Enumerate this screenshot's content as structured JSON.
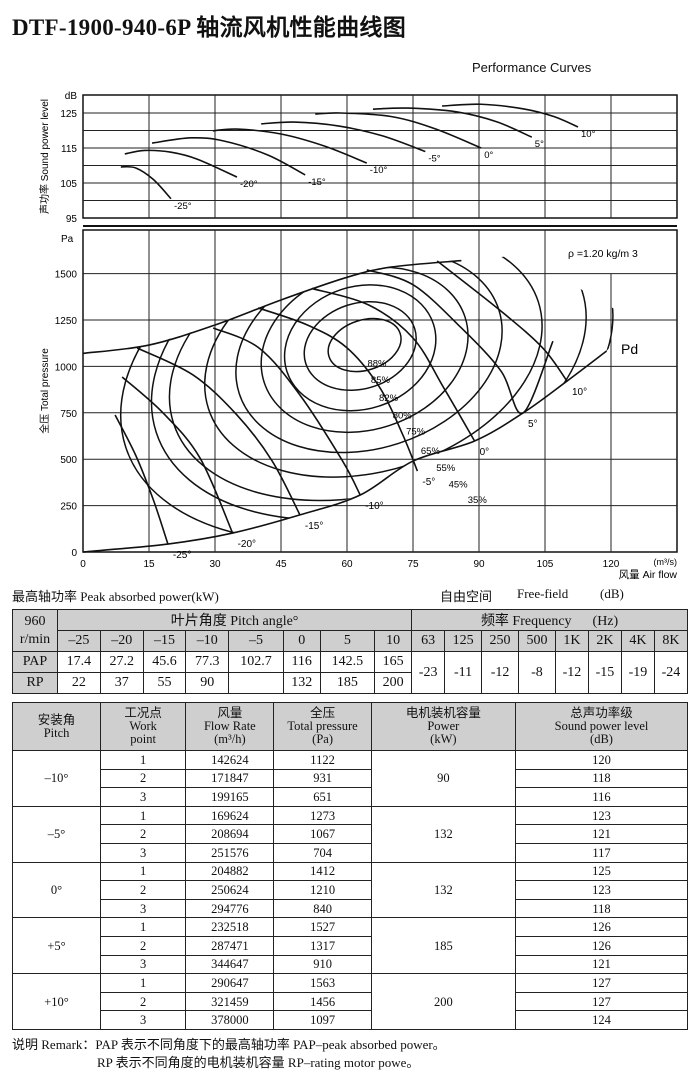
{
  "title": "DTF-1900-940-6P 轴流风机性能曲线图",
  "subtitle": "Performance Curves",
  "chart_data": [
    {
      "type": "line",
      "ylabel": "声功率 Sound power level",
      "yunit": "dB",
      "ylim": [
        95,
        130
      ],
      "xlim": [
        0,
        135
      ],
      "yticks": [
        95,
        105,
        115,
        125
      ],
      "grid": true,
      "series": [
        {
          "name": "-25°",
          "points": [
            [
              8.6,
              109.6
            ],
            [
              12,
              109.3
            ],
            [
              16,
              106
            ],
            [
              20,
              100.5
            ]
          ]
        },
        {
          "name": "-20°",
          "points": [
            [
              9.5,
              113.3
            ],
            [
              14,
              114.3
            ],
            [
              20,
              113.8
            ],
            [
              26,
              111.8
            ],
            [
              35,
              106.7
            ]
          ]
        },
        {
          "name": "-15°",
          "points": [
            [
              15.7,
              116.4
            ],
            [
              24.5,
              117.9
            ],
            [
              32,
              117
            ],
            [
              42,
              113
            ],
            [
              50.5,
              107.3
            ]
          ]
        },
        {
          "name": "-10°",
          "points": [
            [
              29.5,
              119.9
            ],
            [
              35,
              120.4
            ],
            [
              45,
              119
            ],
            [
              55,
              115.5
            ],
            [
              64.5,
              110.7
            ]
          ]
        },
        {
          "name": "-5°",
          "points": [
            [
              40.5,
              121.9
            ],
            [
              48,
              122.4
            ],
            [
              58,
              121.3
            ],
            [
              68,
              118.5
            ],
            [
              77.8,
              114
            ]
          ]
        },
        {
          "name": "0°",
          "points": [
            [
              52.8,
              124.7
            ],
            [
              58.5,
              125
            ],
            [
              70,
              124
            ],
            [
              80,
              120.5
            ],
            [
              90.5,
              115
            ]
          ]
        },
        {
          "name": "5°",
          "points": [
            [
              65.9,
              126.1
            ],
            [
              73.9,
              126.4
            ],
            [
              85,
              125.3
            ],
            [
              94,
              122.5
            ],
            [
              102,
              118.1
            ]
          ]
        },
        {
          "name": "10°",
          "points": [
            [
              81.6,
              127
            ],
            [
              90.5,
              127.5
            ],
            [
              100,
              126.2
            ],
            [
              107,
              124
            ],
            [
              112.5,
              121
            ]
          ]
        }
      ]
    },
    {
      "type": "line",
      "ylabel": "全压 Total pressure",
      "yunit": "Pa",
      "xlabel": "风量 Air flow",
      "xunit": "(m³/s)",
      "xlim": [
        0,
        135
      ],
      "ylim": [
        0,
        1665
      ],
      "xticks": [
        0,
        15,
        30,
        45,
        60,
        75,
        90,
        105,
        120
      ],
      "yticks": [
        0,
        250,
        500,
        750,
        1000,
        1250,
        1500
      ],
      "grid": true,
      "annotation": "ρ =1.20 kg/m 3",
      "pd_label": "Pd",
      "surge_line": [
        [
          0,
          1070
        ],
        [
          15,
          1115
        ],
        [
          30,
          1223
        ],
        [
          45,
          1358
        ],
        [
          60,
          1480
        ],
        [
          70,
          1535
        ],
        [
          86,
          1570
        ]
      ],
      "pd_line": [
        [
          0,
          0
        ],
        [
          19.3,
          43
        ],
        [
          34,
          102
        ],
        [
          49.3,
          200
        ],
        [
          63,
          307
        ],
        [
          75,
          490
        ],
        [
          89,
          598
        ],
        [
          100,
          749
        ],
        [
          110,
          921
        ],
        [
          119,
          1083
        ]
      ],
      "pitch_curves": [
        {
          "name": "-25°",
          "points": [
            [
              7.3,
              738
            ],
            [
              12,
              520
            ],
            [
              16,
              280
            ],
            [
              19.3,
              43
            ]
          ]
        },
        {
          "name": "-20°",
          "points": [
            [
              8.9,
              943
            ],
            [
              18.2,
              749
            ],
            [
              26.6,
              506
            ],
            [
              34,
              102
            ]
          ]
        },
        {
          "name": "-15°",
          "points": [
            [
              12.3,
              1099
            ],
            [
              25,
              954
            ],
            [
              35,
              738
            ],
            [
              43,
              490
            ],
            [
              49.3,
              200
            ]
          ]
        },
        {
          "name": "-10°",
          "points": [
            [
              29.6,
              1207
            ],
            [
              40,
              1099
            ],
            [
              49.3,
              846
            ],
            [
              59,
              490
            ],
            [
              63,
              307
            ]
          ]
        },
        {
          "name": "-5°",
          "points": [
            [
              39.8,
              1315
            ],
            [
              51,
              1223
            ],
            [
              60,
              1100
            ],
            [
              67.5,
              884
            ],
            [
              72.7,
              630
            ],
            [
              76,
              436
            ]
          ]
        },
        {
          "name": "0°",
          "points": [
            [
              52,
              1420
            ],
            [
              65,
              1330
            ],
            [
              75,
              1153
            ],
            [
              82,
              884
            ],
            [
              89,
              598
            ]
          ]
        },
        {
          "name": "5°",
          "points": [
            [
              64.5,
              1520
            ],
            [
              75,
              1440
            ],
            [
              86,
              1207
            ],
            [
              95,
              975
            ],
            [
              100,
              749
            ],
            [
              106.8,
              1136
            ]
          ]
        },
        {
          "name": "10°",
          "points": [
            [
              80.5,
              1568
            ],
            [
              95,
              1298
            ],
            [
              104.5,
              1099
            ],
            [
              110,
              921
            ]
          ]
        }
      ],
      "efficiency_contours": [
        {
          "label": "88%",
          "center": [
            64,
            1115
          ],
          "rx": 8.5,
          "ry": 135
        },
        {
          "label": "85%",
          "center": [
            63,
            1110
          ],
          "rx": 13,
          "ry": 230
        },
        {
          "label": "82%",
          "center": [
            63,
            1100
          ],
          "rx": 17.5,
          "ry": 330
        },
        {
          "label": "80%",
          "center": [
            64,
            1090
          ],
          "rx": 24,
          "ry": 430
        },
        {
          "label": "75%",
          "center": [
            65,
            1080
          ],
          "rx": 31,
          "ry": 520
        },
        {
          "label": "65%",
          "center": [
            66,
            1060
          ],
          "rx": 39.4,
          "ry": 620
        },
        {
          "label": "55%",
          "center": [
            67,
            1050
          ],
          "rx": 48.8,
          "ry": 720
        },
        {
          "label": "45%",
          "center": [
            68,
            1040
          ],
          "rx": 54,
          "ry": 810
        },
        {
          "label": "35%",
          "center": [
            70,
            1030
          ],
          "rx": 63.4,
          "ry": 900
        }
      ]
    }
  ],
  "captions": {
    "peak_power": "最高轴功率 Peak absorbed power(kW)",
    "free_field": "自由空间",
    "free_field_en": "Free-field",
    "db": "(dB)"
  },
  "table1": {
    "speed": "960",
    "speed_unit": "r/min",
    "pitch_header": "叶片角度 Pitch angle°",
    "freq_header": "频率 Frequency      (Hz)",
    "pitches": [
      "-25",
      "-20",
      "-15",
      "-10",
      "-5",
      "0",
      "5",
      "10"
    ],
    "freqs": [
      "63",
      "125",
      "250",
      "500",
      "1K",
      "2K",
      "4K",
      "8K"
    ],
    "pap_label": "PAP",
    "rp_label": "RP",
    "pap": [
      "17.4",
      "27.2",
      "45.6",
      "77.3",
      "102.7",
      "116",
      "142.5",
      "165"
    ],
    "rp": [
      "22",
      "37",
      "55",
      "90",
      "",
      "132",
      "185",
      "200"
    ],
    "freq_values": [
      "-23",
      "-11",
      "-12",
      "-8",
      "-12",
      "-15",
      "-19",
      "-24"
    ]
  },
  "table2": {
    "headers": [
      [
        "安装角",
        "Pitch"
      ],
      [
        "工况点",
        "Work",
        "point"
      ],
      [
        "风量",
        "Flow Rate",
        "(m³/h)"
      ],
      [
        "全压",
        "Total pressure",
        "(Pa)"
      ],
      [
        "电机装机容量",
        "Power",
        "(kW)"
      ],
      [
        "总声功率级",
        "Sound power level",
        "(dB)"
      ]
    ],
    "groups": [
      {
        "pitch": "-10°",
        "power": "90",
        "rows": [
          [
            "1",
            "142624",
            "1122",
            "120"
          ],
          [
            "2",
            "171847",
            "931",
            "118"
          ],
          [
            "3",
            "199165",
            "651",
            "116"
          ]
        ]
      },
      {
        "pitch": "-5°",
        "power": "132",
        "rows": [
          [
            "1",
            "169624",
            "1273",
            "123"
          ],
          [
            "2",
            "208694",
            "1067",
            "121"
          ],
          [
            "3",
            "251576",
            "704",
            "117"
          ]
        ]
      },
      {
        "pitch": "0°",
        "power": "132",
        "rows": [
          [
            "1",
            "204882",
            "1412",
            "125"
          ],
          [
            "2",
            "250624",
            "1210",
            "123"
          ],
          [
            "3",
            "294776",
            "840",
            "118"
          ]
        ]
      },
      {
        "pitch": "+5°",
        "power": "185",
        "rows": [
          [
            "1",
            "232518",
            "1527",
            "126"
          ],
          [
            "2",
            "287471",
            "1317",
            "126"
          ],
          [
            "3",
            "344647",
            "910",
            "121"
          ]
        ]
      },
      {
        "pitch": "+10°",
        "power": "200",
        "rows": [
          [
            "1",
            "290647",
            "1563",
            "127"
          ],
          [
            "2",
            "321459",
            "1456",
            "127"
          ],
          [
            "3",
            "378000",
            "1097",
            "124"
          ]
        ]
      }
    ]
  },
  "remarks": [
    "说明 Remark：PAP 表示不同角度下的最高轴功率 PAP–peak absorbed power。",
    "RP 表示不同角度的电机装机容量 RP–rating motor powe。"
  ]
}
